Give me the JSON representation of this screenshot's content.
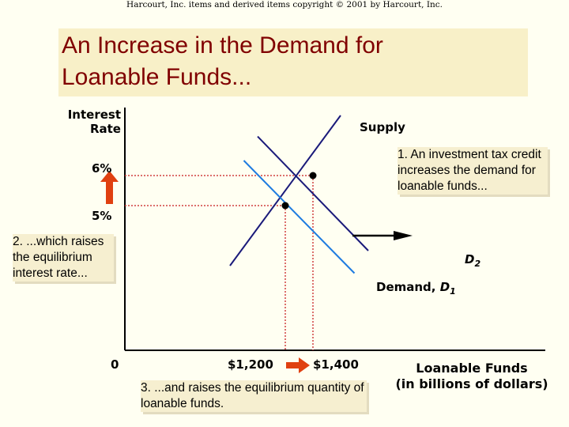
{
  "credit": "Harcourt, Inc. items and derived items copyright © 2001 by Harcourt, Inc.",
  "title_line1": "An Increase in the Demand for",
  "title_line2": "Loanable Funds...",
  "colors": {
    "title": "#800000",
    "supply_curve": "#1a1a7a",
    "demand_d1": "#1e7be0",
    "demand_d2": "#1a1a7a",
    "guide_lines": "#d04040",
    "up_arrow": "#e04010",
    "right_arrow": "#e04010",
    "shift_arrow": "#000000",
    "equilibrium_dot": "#000000"
  },
  "chart_data": {
    "type": "line",
    "title": "An Increase in the Demand for Loanable Funds...",
    "ylabel": "Interest Rate",
    "xlabel": "Loanable Funds (in billions of dollars)",
    "origin_label": "0",
    "y_ticks": [
      "6%",
      "5%"
    ],
    "x_ticks": [
      "$1,200",
      "$1,400"
    ],
    "series": [
      {
        "name": "Supply",
        "points": [
          [
            800,
            3.0
          ],
          [
            1600,
            8.0
          ]
        ]
      },
      {
        "name": "Demand, D1",
        "points": [
          [
            900,
            6.5
          ],
          [
            1700,
            2.75
          ]
        ]
      },
      {
        "name": "D2",
        "points": [
          [
            1000,
            7.3
          ],
          [
            1800,
            3.5
          ]
        ]
      }
    ],
    "equilibria": [
      {
        "label": "initial",
        "quantity": 1200,
        "rate": 5
      },
      {
        "label": "new",
        "quantity": 1400,
        "rate": 6
      }
    ],
    "annotations": [
      "1. An investment tax credit increases the demand for loanable funds...",
      "2. ...which raises the equilibrium interest rate...",
      "3. ...and raises the equilibrium quantity of loanable funds."
    ]
  },
  "labels": {
    "y_axis": "Interest Rate",
    "supply": "Supply",
    "d2_letter": "D",
    "d2_sub": "2",
    "d1_prefix": "Demand, ",
    "d1_letter": "D",
    "d1_sub": "1",
    "x_axis_line1": "Loanable Funds",
    "x_axis_line2": "(in billions of dollars)",
    "origin": "0",
    "rate_high": "6%",
    "rate_low": "5%",
    "qty_low": "$1,200",
    "qty_high": "$1,400"
  },
  "notes": {
    "note1": "1. An investment tax credit increases the demand for loanable funds...",
    "note2": "2. ...which raises the equilibrium interest rate...",
    "note3": "3. ...and raises the equilibrium quantity of loanable funds."
  }
}
